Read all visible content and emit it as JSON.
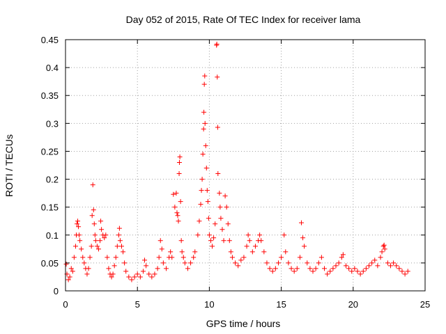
{
  "chart_data": {
    "type": "scatter",
    "title": "Day 052 of 2015, Rate Of TEC Index for receiver lama",
    "xlabel": "GPS time / hours",
    "ylabel": "ROTI / TECUs",
    "xlim": [
      0,
      25
    ],
    "ylim": [
      0,
      0.45
    ],
    "xticks": [
      0,
      5,
      10,
      15,
      20,
      25
    ],
    "yticks": [
      0,
      0.05,
      0.1,
      0.15,
      0.2,
      0.25,
      0.3,
      0.35,
      0.4,
      0.45
    ],
    "xtick_labels": [
      "0",
      "5",
      "10",
      "15",
      "20",
      "25"
    ],
    "ytick_labels": [
      "0",
      "0.05",
      "0.1",
      "0.15",
      "0.2",
      "0.25",
      "0.3",
      "0.35",
      "0.4",
      "0.45"
    ],
    "grid": true,
    "marker": "+",
    "color": "#ff0000",
    "series": [
      {
        "name": "ROTI",
        "points": [
          [
            0.05,
            0.048
          ],
          [
            0.1,
            0.03
          ],
          [
            0.2,
            0.02
          ],
          [
            0.3,
            0.025
          ],
          [
            0.4,
            0.04
          ],
          [
            0.5,
            0.035
          ],
          [
            0.6,
            0.06
          ],
          [
            0.7,
            0.08
          ],
          [
            0.75,
            0.1
          ],
          [
            0.8,
            0.12
          ],
          [
            0.85,
            0.125
          ],
          [
            0.9,
            0.115
          ],
          [
            0.95,
            0.1
          ],
          [
            1.0,
            0.09
          ],
          [
            1.1,
            0.075
          ],
          [
            1.2,
            0.06
          ],
          [
            1.3,
            0.05
          ],
          [
            1.4,
            0.04
          ],
          [
            1.5,
            0.03
          ],
          [
            1.6,
            0.04
          ],
          [
            1.7,
            0.06
          ],
          [
            1.8,
            0.08
          ],
          [
            1.85,
            0.135
          ],
          [
            1.9,
            0.19
          ],
          [
            1.95,
            0.145
          ],
          [
            2.0,
            0.12
          ],
          [
            2.05,
            0.1
          ],
          [
            2.1,
            0.09
          ],
          [
            2.2,
            0.08
          ],
          [
            2.3,
            0.075
          ],
          [
            2.4,
            0.09
          ],
          [
            2.45,
            0.125
          ],
          [
            2.5,
            0.11
          ],
          [
            2.6,
            0.1
          ],
          [
            2.7,
            0.095
          ],
          [
            2.8,
            0.1
          ],
          [
            2.9,
            0.06
          ],
          [
            3.0,
            0.04
          ],
          [
            3.1,
            0.03
          ],
          [
            3.2,
            0.025
          ],
          [
            3.3,
            0.03
          ],
          [
            3.4,
            0.045
          ],
          [
            3.5,
            0.06
          ],
          [
            3.6,
            0.08
          ],
          [
            3.7,
            0.1
          ],
          [
            3.75,
            0.112
          ],
          [
            3.8,
            0.09
          ],
          [
            3.9,
            0.08
          ],
          [
            4.0,
            0.07
          ],
          [
            4.1,
            0.05
          ],
          [
            4.2,
            0.035
          ],
          [
            4.4,
            0.025
          ],
          [
            4.6,
            0.02
          ],
          [
            4.8,
            0.025
          ],
          [
            5.0,
            0.03
          ],
          [
            5.2,
            0.025
          ],
          [
            5.4,
            0.035
          ],
          [
            5.5,
            0.055
          ],
          [
            5.6,
            0.045
          ],
          [
            5.8,
            0.03
          ],
          [
            6.0,
            0.025
          ],
          [
            6.2,
            0.03
          ],
          [
            6.4,
            0.04
          ],
          [
            6.5,
            0.06
          ],
          [
            6.6,
            0.09
          ],
          [
            6.7,
            0.075
          ],
          [
            6.8,
            0.05
          ],
          [
            7.0,
            0.04
          ],
          [
            7.2,
            0.06
          ],
          [
            7.3,
            0.07
          ],
          [
            7.4,
            0.06
          ],
          [
            7.5,
            0.173
          ],
          [
            7.6,
            0.15
          ],
          [
            7.7,
            0.175
          ],
          [
            7.75,
            0.14
          ],
          [
            7.8,
            0.135
          ],
          [
            7.85,
            0.125
          ],
          [
            7.9,
            0.21
          ],
          [
            7.92,
            0.23
          ],
          [
            7.95,
            0.24
          ],
          [
            8.0,
            0.16
          ],
          [
            8.05,
            0.09
          ],
          [
            8.1,
            0.07
          ],
          [
            8.2,
            0.06
          ],
          [
            8.3,
            0.05
          ],
          [
            8.5,
            0.04
          ],
          [
            8.7,
            0.05
          ],
          [
            8.9,
            0.06
          ],
          [
            9.0,
            0.07
          ],
          [
            9.2,
            0.1
          ],
          [
            9.3,
            0.125
          ],
          [
            9.4,
            0.155
          ],
          [
            9.45,
            0.18
          ],
          [
            9.5,
            0.2
          ],
          [
            9.55,
            0.245
          ],
          [
            9.6,
            0.29
          ],
          [
            9.62,
            0.32
          ],
          [
            9.65,
            0.37
          ],
          [
            9.68,
            0.385
          ],
          [
            9.7,
            0.3
          ],
          [
            9.75,
            0.26
          ],
          [
            9.8,
            0.22
          ],
          [
            9.85,
            0.18
          ],
          [
            9.9,
            0.16
          ],
          [
            9.95,
            0.13
          ],
          [
            10.0,
            0.1
          ],
          [
            10.1,
            0.09
          ],
          [
            10.2,
            0.08
          ],
          [
            10.3,
            0.095
          ],
          [
            10.4,
            0.12
          ],
          [
            10.5,
            0.44
          ],
          [
            10.52,
            0.442
          ],
          [
            10.55,
            0.383
          ],
          [
            10.58,
            0.293
          ],
          [
            10.6,
            0.21
          ],
          [
            10.7,
            0.175
          ],
          [
            10.75,
            0.15
          ],
          [
            10.8,
            0.13
          ],
          [
            10.9,
            0.11
          ],
          [
            11.0,
            0.09
          ],
          [
            11.1,
            0.17
          ],
          [
            11.2,
            0.15
          ],
          [
            11.3,
            0.12
          ],
          [
            11.4,
            0.09
          ],
          [
            11.5,
            0.07
          ],
          [
            11.6,
            0.06
          ],
          [
            11.8,
            0.05
          ],
          [
            12.0,
            0.045
          ],
          [
            12.2,
            0.055
          ],
          [
            12.4,
            0.06
          ],
          [
            12.6,
            0.08
          ],
          [
            12.7,
            0.1
          ],
          [
            12.8,
            0.09
          ],
          [
            13.0,
            0.07
          ],
          [
            13.2,
            0.08
          ],
          [
            13.4,
            0.09
          ],
          [
            13.5,
            0.1
          ],
          [
            13.6,
            0.09
          ],
          [
            13.8,
            0.07
          ],
          [
            14.0,
            0.05
          ],
          [
            14.2,
            0.04
          ],
          [
            14.4,
            0.035
          ],
          [
            14.6,
            0.04
          ],
          [
            14.8,
            0.05
          ],
          [
            15.0,
            0.06
          ],
          [
            15.2,
            0.1
          ],
          [
            15.3,
            0.07
          ],
          [
            15.5,
            0.05
          ],
          [
            15.7,
            0.04
          ],
          [
            15.9,
            0.035
          ],
          [
            16.1,
            0.04
          ],
          [
            16.3,
            0.06
          ],
          [
            16.4,
            0.122
          ],
          [
            16.5,
            0.095
          ],
          [
            16.6,
            0.08
          ],
          [
            16.8,
            0.05
          ],
          [
            17.0,
            0.04
          ],
          [
            17.2,
            0.035
          ],
          [
            17.4,
            0.04
          ],
          [
            17.6,
            0.05
          ],
          [
            17.8,
            0.06
          ],
          [
            18.0,
            0.04
          ],
          [
            18.2,
            0.03
          ],
          [
            18.4,
            0.035
          ],
          [
            18.6,
            0.04
          ],
          [
            18.8,
            0.045
          ],
          [
            19.0,
            0.05
          ],
          [
            19.2,
            0.06
          ],
          [
            19.3,
            0.065
          ],
          [
            19.5,
            0.045
          ],
          [
            19.7,
            0.04
          ],
          [
            19.9,
            0.035
          ],
          [
            20.1,
            0.04
          ],
          [
            20.3,
            0.035
          ],
          [
            20.5,
            0.03
          ],
          [
            20.7,
            0.035
          ],
          [
            20.9,
            0.04
          ],
          [
            21.1,
            0.045
          ],
          [
            21.3,
            0.05
          ],
          [
            21.5,
            0.055
          ],
          [
            21.7,
            0.045
          ],
          [
            21.9,
            0.06
          ],
          [
            22.0,
            0.07
          ],
          [
            22.1,
            0.08
          ],
          [
            22.15,
            0.082
          ],
          [
            22.2,
            0.075
          ],
          [
            22.4,
            0.05
          ],
          [
            22.6,
            0.045
          ],
          [
            22.8,
            0.05
          ],
          [
            23.0,
            0.045
          ],
          [
            23.2,
            0.04
          ],
          [
            23.4,
            0.035
          ],
          [
            23.6,
            0.03
          ],
          [
            23.8,
            0.035
          ]
        ]
      }
    ]
  }
}
